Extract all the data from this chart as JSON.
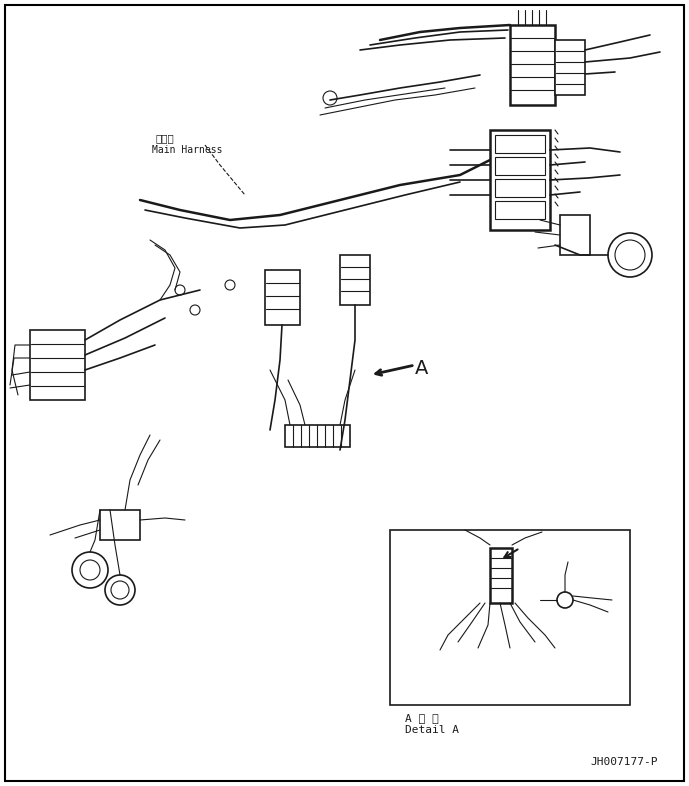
{
  "background_color": "#ffffff",
  "line_color": "#1a1a1a",
  "border_color": "#000000",
  "title_text": "",
  "label_main_harness_cn": "主线束",
  "label_main_harness_en": "Main Harness",
  "label_detail_cn": "A 详 细",
  "label_detail_en": "Detail A",
  "label_A": "A",
  "label_code": "JH007177-P",
  "fig_width": 6.89,
  "fig_height": 7.86,
  "dpi": 100
}
